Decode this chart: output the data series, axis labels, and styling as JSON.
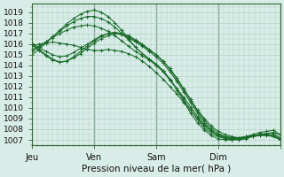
{
  "xlabel": "Pression niveau de la mer( hPa )",
  "ylim": [
    1006.5,
    1019.8
  ],
  "yticks": [
    1007,
    1008,
    1009,
    1010,
    1011,
    1012,
    1013,
    1014,
    1015,
    1016,
    1017,
    1018,
    1019
  ],
  "xlim": [
    0,
    144
  ],
  "xtick_positions": [
    0,
    36,
    72,
    108,
    144
  ],
  "xtick_labels": [
    "Jeu",
    "Ven",
    "Sam",
    "Dim",
    ""
  ],
  "bg_color": "#d9ede8",
  "grid_color": "#b0cfc5",
  "line_color": "#1a6b2a",
  "lines": [
    {
      "x": [
        0,
        4,
        8,
        12,
        16,
        20,
        24,
        28,
        32,
        36,
        40,
        44,
        48,
        52,
        56,
        60,
        64,
        68,
        72,
        76,
        80,
        84,
        88,
        92,
        96,
        100,
        104,
        108,
        112,
        116,
        120,
        124,
        128,
        132,
        136,
        140,
        144
      ],
      "y": [
        1015.8,
        1016.0,
        1016.1,
        1016.2,
        1016.1,
        1016.0,
        1015.9,
        1015.7,
        1015.5,
        1015.4,
        1015.4,
        1015.5,
        1015.4,
        1015.3,
        1015.1,
        1014.8,
        1014.4,
        1013.9,
        1013.3,
        1012.7,
        1012.0,
        1011.3,
        1010.5,
        1009.8,
        1009.0,
        1008.3,
        1007.8,
        1007.5,
        1007.3,
        1007.2,
        1007.1,
        1007.2,
        1007.4,
        1007.5,
        1007.6,
        1007.7,
        1007.5
      ]
    },
    {
      "x": [
        0,
        4,
        8,
        12,
        16,
        20,
        24,
        28,
        32,
        36,
        40,
        44,
        48,
        52,
        56,
        60,
        64,
        68,
        72,
        76,
        80,
        84,
        88,
        92,
        96,
        100,
        104,
        108,
        112,
        116,
        120,
        124,
        128,
        132,
        136,
        140,
        144
      ],
      "y": [
        1015.5,
        1015.8,
        1016.2,
        1016.6,
        1017.0,
        1017.3,
        1017.6,
        1017.7,
        1017.8,
        1017.7,
        1017.5,
        1017.2,
        1016.8,
        1016.3,
        1015.8,
        1015.3,
        1014.9,
        1014.5,
        1014.0,
        1013.4,
        1012.6,
        1011.8,
        1011.0,
        1010.1,
        1009.2,
        1008.4,
        1007.8,
        1007.4,
        1007.2,
        1007.1,
        1007.1,
        1007.3,
        1007.5,
        1007.7,
        1007.8,
        1007.9,
        1007.5
      ]
    },
    {
      "x": [
        0,
        4,
        8,
        12,
        16,
        20,
        24,
        28,
        32,
        36,
        40,
        44,
        48,
        52,
        56,
        60,
        64,
        68,
        72,
        76,
        80,
        84,
        88,
        92,
        96,
        100,
        104,
        108,
        112,
        116,
        120,
        124,
        128,
        132,
        136,
        140,
        144
      ],
      "y": [
        1015.3,
        1015.7,
        1016.2,
        1016.7,
        1017.2,
        1017.7,
        1018.1,
        1018.4,
        1018.6,
        1018.6,
        1018.4,
        1018.1,
        1017.6,
        1017.0,
        1016.4,
        1015.7,
        1015.1,
        1014.6,
        1014.1,
        1013.5,
        1012.7,
        1011.8,
        1010.8,
        1009.8,
        1008.9,
        1008.1,
        1007.6,
        1007.3,
        1007.1,
        1007.0,
        1007.0,
        1007.1,
        1007.3,
        1007.5,
        1007.6,
        1007.6,
        1007.2
      ]
    },
    {
      "x": [
        0,
        4,
        8,
        12,
        16,
        20,
        24,
        28,
        32,
        36,
        40,
        44,
        48,
        52,
        56,
        60,
        64,
        68,
        72,
        76,
        80,
        84,
        88,
        92,
        96,
        100,
        104,
        108,
        112,
        116,
        120,
        124,
        128,
        132,
        136,
        140,
        144
      ],
      "y": [
        1015.0,
        1015.5,
        1016.1,
        1016.7,
        1017.3,
        1017.9,
        1018.4,
        1018.8,
        1019.1,
        1019.2,
        1019.0,
        1018.6,
        1018.0,
        1017.3,
        1016.5,
        1015.7,
        1015.1,
        1014.6,
        1014.1,
        1013.5,
        1012.7,
        1011.7,
        1010.6,
        1009.5,
        1008.6,
        1007.9,
        1007.4,
        1007.1,
        1007.0,
        1007.0,
        1007.1,
        1007.2,
        1007.4,
        1007.5,
        1007.5,
        1007.4,
        1007.0
      ]
    },
    {
      "x": [
        0,
        4,
        8,
        12,
        16,
        20,
        24,
        28,
        32,
        36,
        40,
        44,
        48,
        52,
        56,
        60,
        64,
        68,
        72,
        76,
        80,
        84,
        88,
        92,
        96,
        100,
        104,
        108,
        112,
        116,
        120,
        124,
        128,
        132,
        136,
        140,
        144
      ],
      "y": [
        1015.9,
        1015.4,
        1014.9,
        1014.5,
        1014.3,
        1014.4,
        1014.7,
        1015.1,
        1015.6,
        1016.1,
        1016.5,
        1016.8,
        1017.0,
        1016.9,
        1016.7,
        1016.3,
        1015.9,
        1015.4,
        1015.0,
        1014.4,
        1013.7,
        1012.8,
        1011.8,
        1010.8,
        1009.8,
        1009.0,
        1008.3,
        1007.8,
        1007.5,
        1007.3,
        1007.2,
        1007.3,
        1007.4,
        1007.5,
        1007.5,
        1007.4,
        1007.1
      ]
    },
    {
      "x": [
        0,
        4,
        8,
        12,
        16,
        20,
        24,
        28,
        32,
        36,
        40,
        44,
        48,
        52,
        56,
        60,
        64,
        68,
        72,
        76,
        80,
        84,
        88,
        92,
        96,
        100,
        104,
        108,
        112,
        116,
        120,
        124,
        128,
        132,
        136,
        140,
        144
      ],
      "y": [
        1016.0,
        1015.5,
        1015.0,
        1014.6,
        1014.3,
        1014.4,
        1014.8,
        1015.3,
        1015.8,
        1016.3,
        1016.7,
        1017.0,
        1017.1,
        1017.0,
        1016.8,
        1016.4,
        1016.0,
        1015.5,
        1015.0,
        1014.4,
        1013.6,
        1012.7,
        1011.7,
        1010.7,
        1009.7,
        1008.8,
        1008.1,
        1007.6,
        1007.3,
        1007.2,
        1007.2,
        1007.3,
        1007.4,
        1007.5,
        1007.5,
        1007.4,
        1007.1
      ]
    },
    {
      "x": [
        0,
        4,
        8,
        12,
        16,
        20,
        24,
        28,
        32,
        36,
        40,
        44,
        48,
        52,
        56,
        60,
        64,
        68,
        72,
        76,
        80,
        84,
        88,
        92,
        96,
        100,
        104,
        108,
        112,
        116,
        120,
        124,
        128,
        132,
        136,
        140,
        144
      ],
      "y": [
        1016.1,
        1015.7,
        1015.3,
        1015.0,
        1014.8,
        1014.9,
        1015.2,
        1015.6,
        1016.0,
        1016.4,
        1016.8,
        1017.0,
        1017.1,
        1016.9,
        1016.6,
        1016.2,
        1015.8,
        1015.3,
        1014.8,
        1014.2,
        1013.4,
        1012.5,
        1011.5,
        1010.5,
        1009.5,
        1008.6,
        1007.9,
        1007.4,
        1007.2,
        1007.1,
        1007.1,
        1007.2,
        1007.3,
        1007.4,
        1007.4,
        1007.3,
        1007.0
      ]
    }
  ]
}
